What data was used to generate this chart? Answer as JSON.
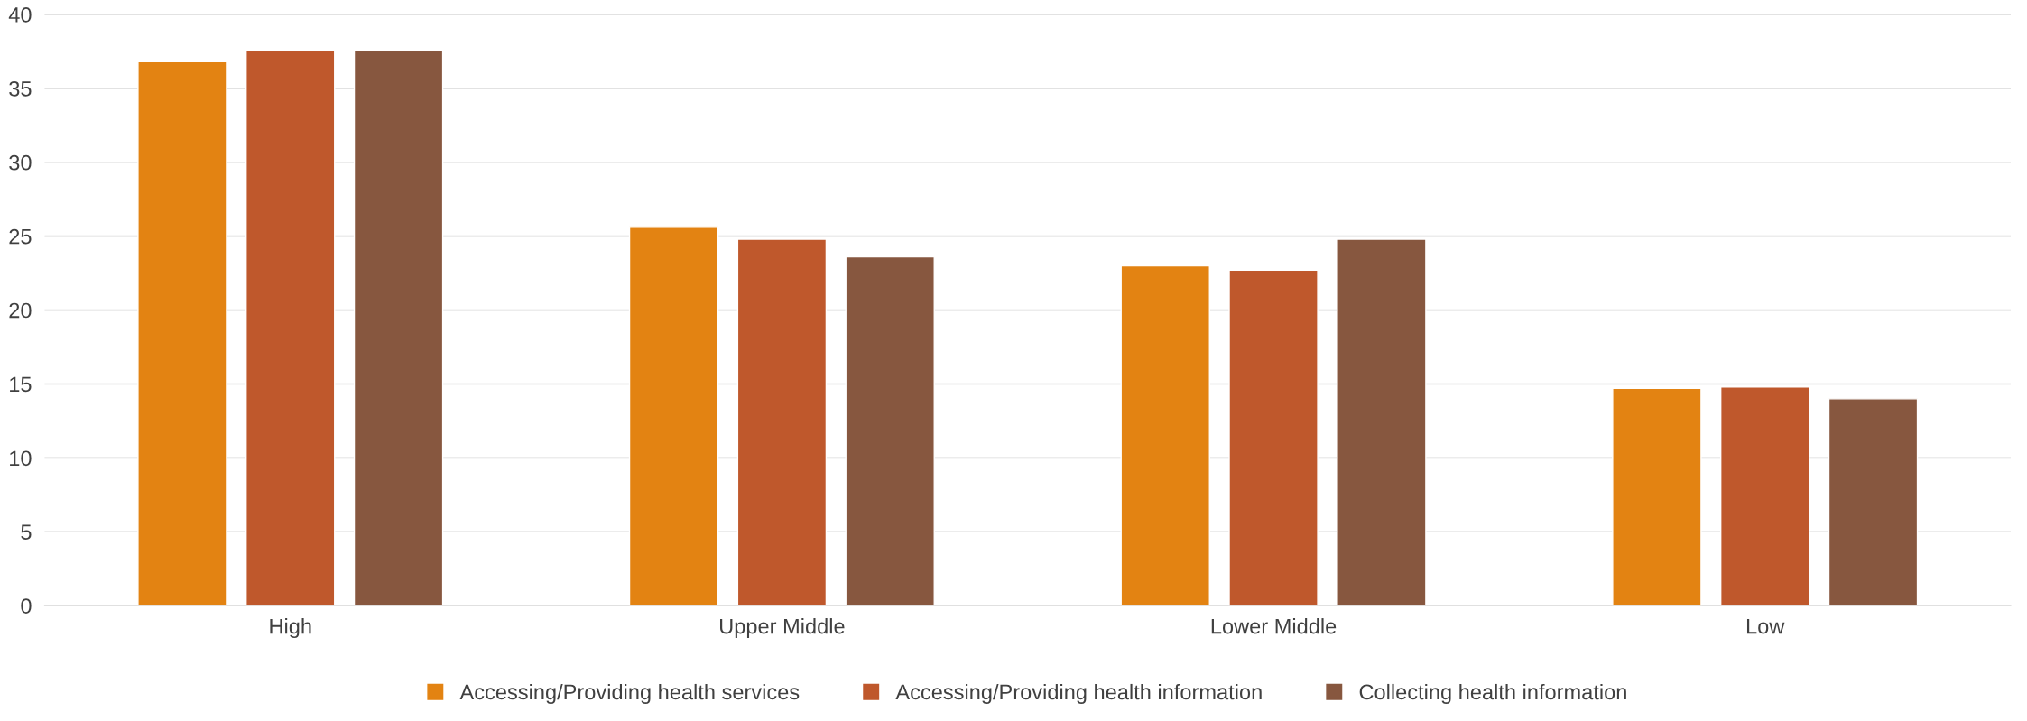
{
  "chart_data": {
    "type": "bar",
    "categories": [
      "High",
      "Upper Middle",
      "Lower Middle",
      "Low"
    ],
    "series": [
      {
        "name": "Accessing/Providing health services",
        "color": "#e38312",
        "values": [
          36.8,
          25.6,
          23.0,
          14.7
        ]
      },
      {
        "name": "Accessing/Providing health information",
        "color": "#bf582c",
        "values": [
          37.6,
          24.8,
          22.7,
          14.8
        ]
      },
      {
        "name": "Collecting health information",
        "color": "#87573f",
        "values": [
          37.6,
          23.6,
          24.8,
          14.0
        ]
      }
    ],
    "ylim": [
      0,
      40
    ],
    "yticks": [
      0,
      5,
      10,
      15,
      20,
      25,
      30,
      35,
      40
    ],
    "grid": "y",
    "legend": "bottom"
  }
}
